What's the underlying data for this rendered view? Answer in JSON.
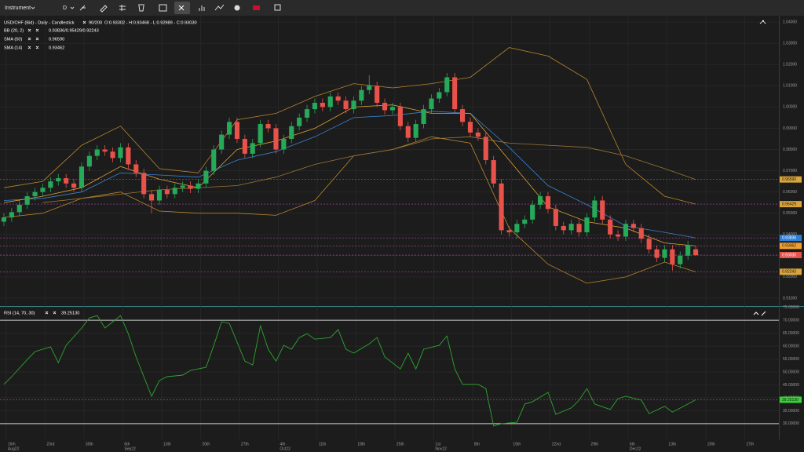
{
  "toolbar": {
    "instrument": "Instrument",
    "period": "D"
  },
  "chart_data": [
    {
      "type": "candlestick",
      "title": "USD/CHF (Bid) - Daily - Candlestick",
      "count": "90/200",
      "ohlc_label": "O:0.93302 - H:0.93468 - L:0.92989 - C:0.93030",
      "legend": [
        {
          "name": "BB (20, 2)",
          "value": "0.93836/0.95429/0.92243"
        },
        {
          "name": "SMA (50)",
          "value": "0.96590"
        },
        {
          "name": "SMA (14)",
          "value": "0.93462"
        }
      ],
      "up_color": "#27a95a",
      "down_color": "#e9524b",
      "open": [
        0.946,
        0.948,
        0.9505,
        0.954,
        0.958,
        0.96,
        0.962,
        0.965,
        0.9665,
        0.964,
        0.962,
        0.972,
        0.977,
        0.98,
        0.979,
        0.976,
        0.981,
        0.973,
        0.969,
        0.959,
        0.956,
        0.961,
        0.959,
        0.962,
        0.963,
        0.9615,
        0.964,
        0.97,
        0.98,
        0.987,
        0.993,
        0.985,
        0.978,
        0.983,
        0.992,
        0.99,
        0.98,
        0.985,
        0.991,
        0.995,
        0.999,
        1.002,
        1.0,
        1.005,
        1.003,
        0.999,
        1.003,
        1.008,
        1.01,
        1.002,
        0.9985,
        1.0,
        0.991,
        0.9855,
        0.992,
        0.999,
        1.004,
        1.007,
        1.014,
        0.999,
        0.993,
        0.988,
        0.986,
        0.975,
        0.964,
        0.942,
        0.941,
        0.945,
        0.947,
        0.954,
        0.958,
        0.952,
        0.944,
        0.942,
        0.945,
        0.941,
        0.948,
        0.956,
        0.947,
        0.94,
        0.939,
        0.945,
        0.943,
        0.938,
        0.933,
        0.929,
        0.933,
        0.926,
        0.93,
        0.93302
      ],
      "high": [
        0.95,
        0.9525,
        0.956,
        0.96,
        0.962,
        0.964,
        0.967,
        0.9685,
        0.9685,
        0.966,
        0.974,
        0.979,
        0.982,
        0.982,
        0.981,
        0.983,
        0.983,
        0.975,
        0.971,
        0.961,
        0.963,
        0.963,
        0.964,
        0.965,
        0.965,
        0.966,
        0.972,
        0.982,
        0.989,
        0.995,
        0.995,
        0.987,
        0.985,
        0.994,
        0.994,
        0.992,
        0.987,
        0.993,
        0.997,
        1.001,
        1.004,
        1.004,
        1.007,
        1.007,
        1.005,
        1.005,
        1.01,
        1.015,
        1.012,
        1.004,
        1.002,
        1.002,
        0.993,
        0.994,
        1.001,
        1.006,
        1.009,
        1.016,
        1.016,
        1.001,
        0.995,
        0.99,
        0.988,
        0.977,
        0.966,
        0.944,
        0.947,
        0.949,
        0.956,
        0.96,
        0.96,
        0.954,
        0.946,
        0.947,
        0.947,
        0.95,
        0.958,
        0.958,
        0.949,
        0.942,
        0.947,
        0.947,
        0.945,
        0.94,
        0.935,
        0.935,
        0.935,
        0.932,
        0.937,
        0.93468
      ],
      "low": [
        0.944,
        0.946,
        0.9485,
        0.952,
        0.956,
        0.958,
        0.96,
        0.963,
        0.962,
        0.96,
        0.96,
        0.97,
        0.975,
        0.977,
        0.974,
        0.974,
        0.971,
        0.967,
        0.957,
        0.95,
        0.954,
        0.957,
        0.957,
        0.96,
        0.9595,
        0.9595,
        0.962,
        0.968,
        0.978,
        0.985,
        0.983,
        0.976,
        0.976,
        0.981,
        0.988,
        0.978,
        0.978,
        0.983,
        0.989,
        0.993,
        0.997,
        0.998,
        0.998,
        1.001,
        0.997,
        0.997,
        1.001,
        1.006,
        1.0,
        0.9965,
        0.9965,
        0.989,
        0.9835,
        0.9835,
        0.99,
        0.997,
        1.002,
        1.005,
        0.997,
        0.991,
        0.986,
        0.984,
        0.973,
        0.962,
        0.94,
        0.939,
        0.938,
        0.943,
        0.945,
        0.952,
        0.95,
        0.942,
        0.94,
        0.94,
        0.939,
        0.939,
        0.946,
        0.945,
        0.938,
        0.937,
        0.937,
        0.941,
        0.936,
        0.931,
        0.927,
        0.927,
        0.923,
        0.924,
        0.928,
        0.92989
      ],
      "close": [
        0.948,
        0.9505,
        0.954,
        0.958,
        0.96,
        0.962,
        0.965,
        0.9665,
        0.964,
        0.962,
        0.972,
        0.977,
        0.98,
        0.979,
        0.976,
        0.981,
        0.973,
        0.969,
        0.959,
        0.956,
        0.961,
        0.959,
        0.962,
        0.963,
        0.9615,
        0.964,
        0.97,
        0.98,
        0.987,
        0.993,
        0.985,
        0.978,
        0.983,
        0.992,
        0.99,
        0.98,
        0.985,
        0.991,
        0.995,
        0.999,
        1.002,
        1.0,
        1.005,
        1.003,
        0.999,
        1.003,
        1.008,
        1.01,
        1.002,
        0.9985,
        1.0,
        0.991,
        0.9855,
        0.992,
        0.999,
        1.004,
        1.007,
        1.014,
        0.999,
        0.993,
        0.988,
        0.986,
        0.975,
        0.964,
        0.942,
        0.941,
        0.945,
        0.947,
        0.954,
        0.958,
        0.952,
        0.944,
        0.942,
        0.945,
        0.941,
        0.948,
        0.956,
        0.947,
        0.94,
        0.939,
        0.945,
        0.943,
        0.938,
        0.933,
        0.929,
        0.933,
        0.926,
        0.93,
        0.935,
        0.9303
      ],
      "overlays": [
        {
          "color": "#b8862b",
          "x": [
            0,
            5,
            10,
            15,
            20,
            25,
            30,
            35,
            40,
            45,
            50,
            55,
            60,
            65,
            70,
            75,
            80,
            85,
            89
          ],
          "values": [
            0.962,
            0.965,
            0.982,
            0.991,
            0.971,
            0.969,
            0.994,
            0.997,
            1.005,
            1.011,
            1.009,
            1.011,
            1.014,
            1.028,
            1.024,
            1.013,
            0.973,
            0.958,
            0.9543
          ]
        },
        {
          "color": "#b8862b",
          "x": [
            0,
            5,
            10,
            15,
            20,
            25,
            30,
            35,
            40,
            45,
            50,
            55,
            60,
            65,
            70,
            75,
            80,
            85,
            89
          ],
          "values": [
            0.948,
            0.95,
            0.957,
            0.96,
            0.951,
            0.95,
            0.95,
            0.949,
            0.956,
            0.977,
            0.98,
            0.986,
            0.983,
            0.943,
            0.926,
            0.917,
            0.92,
            0.927,
            0.9224
          ]
        },
        {
          "color": "#3b82d0",
          "x": [
            0,
            5,
            10,
            15,
            20,
            25,
            30,
            35,
            40,
            45,
            50,
            55,
            60,
            65,
            70,
            75,
            80,
            85,
            89
          ],
          "values": [
            0.956,
            0.957,
            0.96,
            0.969,
            0.968,
            0.967,
            0.975,
            0.979,
            0.986,
            0.995,
            0.996,
            0.998,
            0.997,
            0.981,
            0.963,
            0.954,
            0.944,
            0.941,
            0.9384
          ]
        },
        {
          "color": "#9c7634",
          "x": [
            0,
            5,
            10,
            15,
            20,
            25,
            30,
            35,
            40,
            45,
            50,
            55,
            60,
            65,
            70,
            75,
            80,
            85,
            89
          ],
          "values": [
            null,
            0.955,
            0.957,
            0.959,
            0.961,
            0.962,
            0.963,
            0.967,
            0.973,
            0.977,
            0.98,
            0.985,
            0.986,
            0.983,
            0.982,
            0.981,
            0.977,
            0.971,
            0.9659
          ]
        },
        {
          "color": "#e0a030",
          "x": [
            0,
            5,
            10,
            15,
            20,
            25,
            30,
            35,
            40,
            45,
            50,
            55,
            60,
            65,
            70,
            75,
            80,
            85,
            89
          ],
          "values": [
            0.955,
            0.958,
            0.962,
            0.972,
            0.966,
            0.962,
            0.98,
            0.984,
            0.99,
            1.0,
            1.001,
            0.997,
            0.997,
            0.975,
            0.953,
            0.946,
            0.943,
            0.936,
            0.9346
          ]
        }
      ],
      "price_tags": [
        {
          "value": 0.9659,
          "label": "0.96590",
          "color": "#d9a43a"
        },
        {
          "value": 0.95429,
          "label": "0.95429",
          "color": "#d9a43a"
        },
        {
          "value": 0.93836,
          "label": "0.93836",
          "color": "#2f7fd8"
        },
        {
          "value": 0.93462,
          "label": "0.93462",
          "color": "#f0a030"
        },
        {
          "value": 0.9303,
          "label": "0.93030",
          "color": "#e9524b"
        },
        {
          "value": 0.92243,
          "label": "0.92243",
          "color": "#d9a43a"
        }
      ],
      "xlim": [
        -0.5,
        99.7
      ],
      "xticks": [
        {
          "value": 0.3,
          "label": "16th"
        },
        {
          "value": 5.3,
          "label": "23rd"
        },
        {
          "value": 10.3,
          "label": "30th"
        },
        {
          "value": 15.3,
          "label": "6th"
        },
        {
          "value": 20.3,
          "label": "13th"
        },
        {
          "value": 25.3,
          "label": "20th"
        },
        {
          "value": 30.3,
          "label": "27th"
        },
        {
          "value": 35.3,
          "label": "4th"
        },
        {
          "value": 40.3,
          "label": "11th"
        },
        {
          "value": 45.3,
          "label": "18th"
        },
        {
          "value": 50.3,
          "label": "25th"
        },
        {
          "value": 55.3,
          "label": "1st"
        },
        {
          "value": 60.3,
          "label": "8th"
        },
        {
          "value": 65.3,
          "label": "15th"
        },
        {
          "value": 70.3,
          "label": "22nd"
        },
        {
          "value": 75.3,
          "label": "29th"
        },
        {
          "value": 80.3,
          "label": "6th"
        },
        {
          "value": 85.3,
          "label": "13th"
        },
        {
          "value": 90.3,
          "label": "20th"
        },
        {
          "value": 95.3,
          "label": "27th"
        }
      ],
      "xmonths": [
        {
          "value": 0.3,
          "label": "Aug22"
        },
        {
          "value": 15.3,
          "label": "Sep22"
        },
        {
          "value": 35.3,
          "label": "Oct22"
        },
        {
          "value": 55.3,
          "label": "Nov22"
        },
        {
          "value": 80.3,
          "label": "Dec22"
        }
      ],
      "ylim": [
        0.9063,
        1.043
      ],
      "yticks": [
        {
          "value": 1.04,
          "label": "1.04000"
        },
        {
          "value": 1.03,
          "label": "1.03000"
        },
        {
          "value": 1.02,
          "label": "1.02000"
        },
        {
          "value": 1.01,
          "label": "1.01000"
        },
        {
          "value": 1.0,
          "label": "1.00000"
        },
        {
          "value": 0.99,
          "label": "0.99000"
        },
        {
          "value": 0.98,
          "label": "0.98000"
        },
        {
          "value": 0.97,
          "label": "0.97000"
        },
        {
          "value": 0.96,
          "label": "0.96000"
        },
        {
          "value": 0.95,
          "label": "0.95000"
        },
        {
          "value": 0.94,
          "label": "0.94000"
        },
        {
          "value": 0.93,
          "label": "0.93000"
        },
        {
          "value": 0.92,
          "label": "0.92000"
        },
        {
          "value": 0.91,
          "label": "0.91000"
        }
      ],
      "grid": true
    },
    {
      "type": "line",
      "title": "RSI (14, 70, 30)",
      "value_label": "39.25130",
      "color": "#2fa52f",
      "x": [
        0,
        1,
        3,
        4,
        6,
        7,
        8,
        10,
        11,
        12,
        13,
        14,
        15,
        16,
        17,
        18,
        19,
        20,
        21,
        23,
        24,
        26,
        27,
        28,
        29,
        31,
        32,
        33,
        34,
        35,
        36,
        37,
        38,
        39,
        40,
        42,
        43,
        44,
        45,
        47,
        48,
        49,
        51,
        52,
        53,
        54,
        56,
        57,
        58,
        59,
        61,
        62,
        63,
        64,
        66,
        67,
        68,
        70,
        71,
        73,
        74,
        75,
        76,
        78,
        79,
        80,
        82,
        83,
        85,
        86,
        88,
        89
      ],
      "values": [
        45.2,
        48.2,
        54.8,
        57.9,
        59.7,
        53.6,
        60.3,
        67.0,
        70.9,
        71.8,
        67.0,
        69.4,
        71.8,
        64.8,
        55.8,
        48.2,
        40.6,
        46.7,
        48.2,
        48.8,
        50.6,
        51.8,
        60.3,
        69.4,
        68.8,
        54.2,
        52.7,
        67.9,
        58.8,
        54.2,
        60.3,
        58.8,
        63.3,
        64.8,
        62.7,
        63.3,
        66.4,
        58.8,
        57.3,
        60.9,
        63.3,
        55.8,
        51.2,
        57.3,
        51.2,
        58.8,
        60.3,
        63.9,
        51.2,
        45.2,
        45.2,
        43.6,
        29.1,
        30.0,
        30.6,
        37.6,
        38.5,
        42.1,
        33.6,
        36.1,
        39.1,
        43.6,
        37.6,
        35.5,
        39.7,
        40.6,
        39.1,
        33.9,
        36.7,
        34.5,
        37.6,
        39.2513
      ],
      "levels": [
        70,
        30
      ],
      "current": {
        "value": 39.2513,
        "label": "39.25130",
        "color": "#3ad13a"
      },
      "ylim": [
        23.9,
        74.9
      ],
      "yticks": [
        {
          "value": 75,
          "label": "75.00000"
        },
        {
          "value": 70,
          "label": "70.00000"
        },
        {
          "value": 65,
          "label": "65.00000"
        },
        {
          "value": 60,
          "label": "60.00000"
        },
        {
          "value": 55,
          "label": "55.00000"
        },
        {
          "value": 50,
          "label": "50.00000"
        },
        {
          "value": 45,
          "label": "45.00000"
        },
        {
          "value": 40,
          "label": "40.00000"
        },
        {
          "value": 35,
          "label": "35.00000"
        },
        {
          "value": 30,
          "label": "30.00000"
        }
      ],
      "grid": true
    }
  ]
}
